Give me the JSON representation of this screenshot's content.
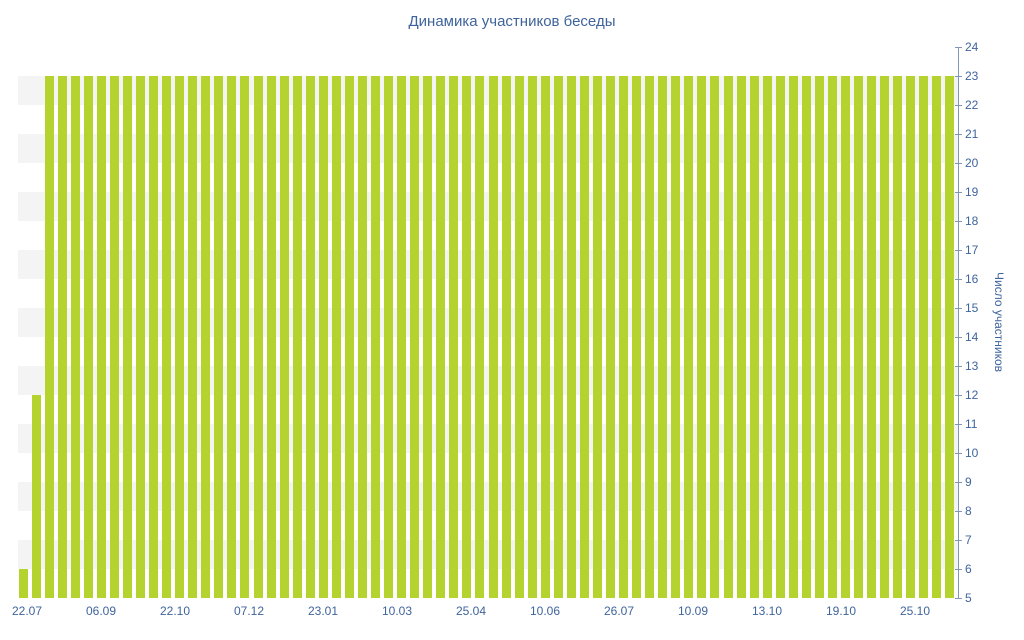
{
  "colors": {
    "bar": "#b5d32e",
    "text": "#3f649c",
    "axis_line": "#8496b5",
    "stripe": "#f4f4f4",
    "background": "#ffffff"
  },
  "chart_data": {
    "type": "bar",
    "title": "Динамика участников беседы",
    "xlabel": "",
    "ylabel": "Число участников",
    "ylim": [
      5,
      24
    ],
    "y_ticks": [
      5,
      6,
      7,
      8,
      9,
      10,
      11,
      12,
      13,
      14,
      15,
      16,
      17,
      18,
      19,
      20,
      21,
      22,
      23,
      24
    ],
    "x_tick_labels": [
      "22.07",
      "06.09",
      "22.10",
      "07.12",
      "23.01",
      "10.03",
      "25.04",
      "10.06",
      "26.07",
      "10.09",
      "13.10",
      "19.10",
      "25.10"
    ],
    "values": [
      6,
      12,
      23,
      23,
      23,
      23,
      23,
      23,
      23,
      23,
      23,
      23,
      23,
      23,
      23,
      23,
      23,
      23,
      23,
      23,
      23,
      23,
      23,
      23,
      23,
      23,
      23,
      23,
      23,
      23,
      23,
      23,
      23,
      23,
      23,
      23,
      23,
      23,
      23,
      23,
      23,
      23,
      23,
      23,
      23,
      23,
      23,
      23,
      23,
      23,
      23,
      23,
      23,
      23,
      23,
      23,
      23,
      23,
      23,
      23,
      23,
      23,
      23,
      23,
      23,
      23,
      23,
      23,
      23,
      23,
      23,
      23
    ],
    "grid": "horizontal-stripes",
    "legend": "none",
    "y_axis_position": "right"
  }
}
